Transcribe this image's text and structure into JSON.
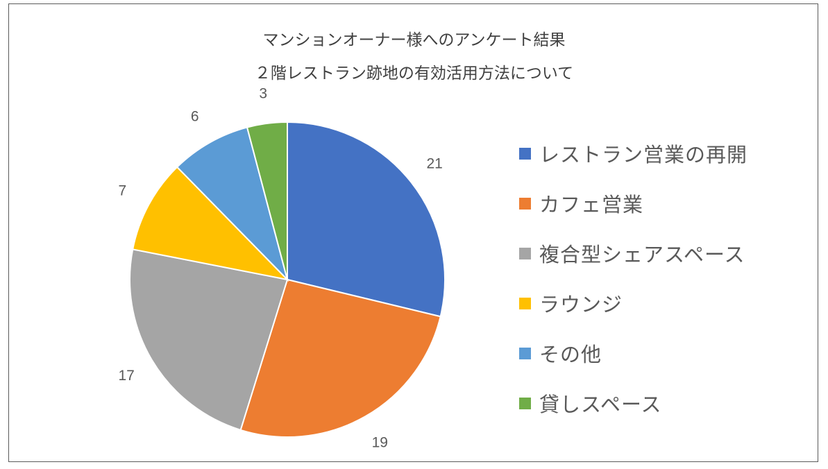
{
  "title": {
    "line1": "マンションオーナー様へのアンケート結果",
    "line2": "２階レストラン跡地の有効活用方法について"
  },
  "chart_data": {
    "type": "pie",
    "categories": [
      "レストラン営業の再開",
      "カフェ営業",
      "複合型シェアスペース",
      "ラウンジ",
      "その他",
      "貸しスペース"
    ],
    "values": [
      21,
      19,
      17,
      7,
      6,
      3
    ],
    "colors": [
      "#4472C4",
      "#ED7D31",
      "#A5A5A5",
      "#FFC000",
      "#5B9BD5",
      "#70AD47"
    ],
    "data_labels": [
      "21",
      "19",
      "17",
      "7",
      "6",
      "3"
    ],
    "legend_position": "right",
    "start_angle": "12 o'clock",
    "direction": "clockwise"
  }
}
